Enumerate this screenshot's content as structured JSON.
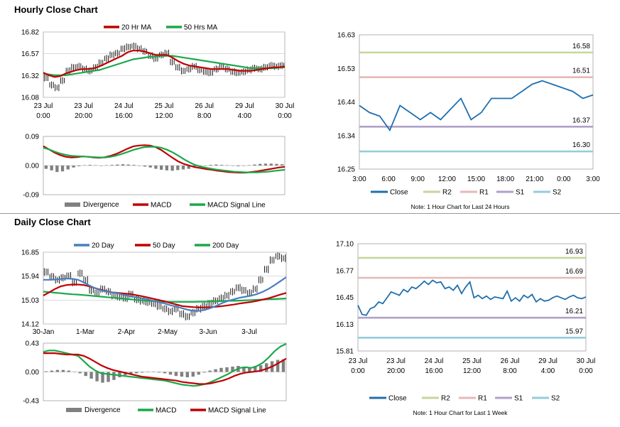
{
  "sections": {
    "hourly_title": "Hourly Close Chart",
    "daily_title": "Daily Close Chart"
  },
  "colors": {
    "ma_short": "#c00000",
    "ma_long": "#1aa84b",
    "ma_200": "#1aa84b",
    "ma_20d": "#4a7ebf",
    "close": "#1f6fae",
    "r2": "#c4d79b",
    "r1": "#e6b8b7",
    "s1": "#b1a0c7",
    "s2": "#92cddc",
    "divergence": "#808080",
    "macd_red": "#c00000",
    "macd_green": "#1aa84b"
  },
  "chart_data": [
    {
      "id": "hourly_price",
      "type": "line",
      "title": "",
      "legend": [
        "20 Hr MA",
        "50 Hrs MA"
      ],
      "yticks": [
        "16.82",
        "16.57",
        "16.32",
        "16.08"
      ],
      "ylim": [
        16.08,
        16.82
      ],
      "xticks": [
        [
          "23 Jul",
          "0:00"
        ],
        [
          "23 Jul",
          "20:00"
        ],
        [
          "24 Jul",
          "16:00"
        ],
        [
          "25 Jul",
          "12:00"
        ],
        [
          "26 Jul",
          "8:00"
        ],
        [
          "29 Jul",
          "4:00"
        ],
        [
          "30 Jul",
          "0:00"
        ]
      ],
      "price": [
        16.3,
        16.22,
        16.19,
        16.27,
        16.38,
        16.42,
        16.43,
        16.4,
        16.38,
        16.42,
        16.47,
        16.52,
        16.56,
        16.58,
        16.63,
        16.65,
        16.66,
        16.63,
        16.6,
        16.55,
        16.52,
        16.56,
        16.58,
        16.48,
        16.42,
        16.38,
        16.4,
        16.43,
        16.39,
        16.37,
        16.36,
        16.4,
        16.43,
        16.4,
        16.37,
        16.36,
        16.37,
        16.39,
        16.41,
        16.4,
        16.42,
        16.44,
        16.43,
        16.44
      ],
      "ma_short": [
        16.36,
        16.33,
        16.31,
        16.32,
        16.35,
        16.37,
        16.39,
        16.4,
        16.4,
        16.41,
        16.43,
        16.46,
        16.49,
        16.52,
        16.55,
        16.59,
        16.61,
        16.61,
        16.6,
        16.58,
        16.56,
        16.56,
        16.56,
        16.53,
        16.49,
        16.46,
        16.44,
        16.43,
        16.42,
        16.41,
        16.4,
        16.4,
        16.4,
        16.4,
        16.39,
        16.38,
        16.38,
        16.38,
        16.39,
        16.4,
        16.41,
        16.42,
        16.42,
        16.43
      ],
      "ma_long": [
        16.35,
        16.34,
        16.33,
        16.33,
        16.33,
        16.34,
        16.35,
        16.36,
        16.37,
        16.38,
        16.39,
        16.41,
        16.43,
        16.45,
        16.47,
        16.49,
        16.51,
        16.52,
        16.53,
        16.54,
        16.54,
        16.55,
        16.55,
        16.55,
        16.54,
        16.53,
        16.52,
        16.51,
        16.5,
        16.49,
        16.48,
        16.47,
        16.46,
        16.45,
        16.44,
        16.43,
        16.42,
        16.41,
        16.41,
        16.41,
        16.41,
        16.41,
        16.42,
        16.42
      ]
    },
    {
      "id": "hourly_macd",
      "type": "line",
      "legend": [
        "Divergence",
        "MACD",
        "MACD Signal Line"
      ],
      "yticks": [
        "0.09",
        "0.00",
        "-0.09"
      ],
      "ylim": [
        -0.09,
        0.09
      ],
      "divergence": [
        -0.01,
        -0.015,
        -0.02,
        -0.018,
        -0.012,
        -0.006,
        -0.002,
        0.001,
        0.002,
        0.001,
        0.0,
        0.001,
        0.002,
        0.003,
        0.004,
        0.003,
        0.002,
        0.0,
        -0.003,
        -0.006,
        -0.01,
        -0.013,
        -0.015,
        -0.016,
        -0.014,
        -0.012,
        -0.01,
        -0.006,
        -0.003,
        0.0,
        0.002,
        0.003,
        0.002,
        0.001,
        0.0,
        -0.002,
        -0.001,
        0.001,
        0.003,
        0.005,
        0.006,
        0.006,
        0.005,
        0.004
      ],
      "macd": [
        0.06,
        0.05,
        0.04,
        0.032,
        0.027,
        0.025,
        0.026,
        0.028,
        0.027,
        0.025,
        0.024,
        0.026,
        0.03,
        0.036,
        0.044,
        0.052,
        0.059,
        0.062,
        0.063,
        0.062,
        0.057,
        0.048,
        0.036,
        0.024,
        0.013,
        0.005,
        0.0,
        -0.005,
        -0.008,
        -0.011,
        -0.013,
        -0.016,
        -0.018,
        -0.02,
        -0.021,
        -0.022,
        -0.022,
        -0.02,
        -0.018,
        -0.015,
        -0.012,
        -0.009,
        -0.006,
        -0.004
      ],
      "signal": [
        0.055,
        0.05,
        0.043,
        0.037,
        0.033,
        0.03,
        0.029,
        0.028,
        0.027,
        0.026,
        0.025,
        0.025,
        0.027,
        0.031,
        0.036,
        0.042,
        0.048,
        0.053,
        0.057,
        0.058,
        0.058,
        0.055,
        0.049,
        0.041,
        0.031,
        0.02,
        0.01,
        0.002,
        -0.003,
        -0.007,
        -0.01,
        -0.013,
        -0.015,
        -0.017,
        -0.019,
        -0.02,
        -0.021,
        -0.021,
        -0.021,
        -0.02,
        -0.019,
        -0.017,
        -0.015,
        -0.013
      ]
    },
    {
      "id": "hourly_24h",
      "type": "line",
      "yticks": [
        "16.63",
        "16.53",
        "16.44",
        "16.34",
        "16.25"
      ],
      "ylim": [
        16.25,
        16.63
      ],
      "xticks": [
        "3:00",
        "6:00",
        "9:00",
        "12:00",
        "15:00",
        "18:00",
        "21:00",
        "0:00",
        "3:00"
      ],
      "close": [
        16.43,
        16.41,
        16.4,
        16.36,
        16.43,
        16.41,
        16.39,
        16.41,
        16.39,
        16.42,
        16.45,
        16.39,
        16.41,
        16.45,
        16.45,
        16.45,
        16.47,
        16.49,
        16.5,
        16.49,
        16.48,
        16.47,
        16.45,
        16.46
      ],
      "levels": [
        {
          "name": "R2",
          "value": "16.58"
        },
        {
          "name": "R1",
          "value": "16.51"
        },
        {
          "name": "S1",
          "value": "16.37"
        },
        {
          "name": "S2",
          "value": "16.30"
        }
      ],
      "legend": [
        "Close",
        "R2",
        "R1",
        "S1",
        "S2"
      ],
      "note": "Note: 1 Hour Chart for Last 24 Hours"
    },
    {
      "id": "daily_price",
      "type": "line",
      "legend": [
        "20 Day",
        "50 Day",
        "200 Day"
      ],
      "yticks": [
        "16.85",
        "15.94",
        "15.03",
        "14.12"
      ],
      "ylim": [
        14.12,
        16.85
      ],
      "xticks": [
        "30-Jan",
        "1-Mar",
        "2-Apr",
        "2-May",
        "3-Jun",
        "3-Jul"
      ],
      "price": [
        16.1,
        15.92,
        15.8,
        15.88,
        15.95,
        15.7,
        16.05,
        15.8,
        15.4,
        15.3,
        15.45,
        15.35,
        15.2,
        15.15,
        15.1,
        15.25,
        15.05,
        15.0,
        14.95,
        14.9,
        14.8,
        14.7,
        14.6,
        14.7,
        14.5,
        14.4,
        14.55,
        14.7,
        14.8,
        14.9,
        15.0,
        15.1,
        15.2,
        15.35,
        15.5,
        15.4,
        15.3,
        15.45,
        15.8,
        16.2,
        16.55,
        16.7,
        16.62
      ],
      "ma20": [
        15.8,
        15.8,
        15.81,
        15.83,
        15.85,
        15.84,
        15.8,
        15.7,
        15.58,
        15.48,
        15.4,
        15.35,
        15.32,
        15.28,
        15.22,
        15.18,
        15.14,
        15.1,
        15.06,
        15.0,
        14.95,
        14.9,
        14.83,
        14.78,
        14.72,
        14.66,
        14.62,
        14.62,
        14.66,
        14.73,
        14.82,
        14.92,
        15.0,
        15.06,
        15.12,
        15.16,
        15.2,
        15.26,
        15.35,
        15.46,
        15.6,
        15.75,
        15.9
      ],
      "ma50": [
        15.2,
        15.32,
        15.45,
        15.55,
        15.6,
        15.62,
        15.62,
        15.6,
        15.55,
        15.48,
        15.42,
        15.36,
        15.32,
        15.3,
        15.28,
        15.26,
        15.22,
        15.18,
        15.13,
        15.08,
        15.03,
        14.98,
        14.92,
        14.86,
        14.8,
        14.78,
        14.76,
        14.75,
        14.75,
        14.76,
        14.78,
        14.8,
        14.83,
        14.86,
        14.9,
        14.93,
        14.96,
        15.0,
        15.05,
        15.1,
        15.17,
        15.24,
        15.3
      ],
      "ma200": [
        15.35,
        15.33,
        15.31,
        15.29,
        15.27,
        15.25,
        15.24,
        15.22,
        15.2,
        15.18,
        15.16,
        15.14,
        15.12,
        15.1,
        15.08,
        15.06,
        15.04,
        15.02,
        15.0,
        14.99,
        14.98,
        14.97,
        14.96,
        14.96,
        14.96,
        14.96,
        14.96,
        14.97,
        14.97,
        14.98,
        14.98,
        14.99,
        15.0,
        15.0,
        15.01,
        15.02,
        15.03,
        15.04,
        15.05,
        15.06,
        15.07,
        15.08,
        15.09
      ]
    },
    {
      "id": "daily_macd",
      "type": "line",
      "legend": [
        "Divergence",
        "MACD",
        "MACD Signal Line"
      ],
      "yticks": [
        "0.43",
        "0.00",
        "-0.43"
      ],
      "ylim": [
        -0.43,
        0.43
      ],
      "divergence": [
        0.01,
        0.02,
        0.03,
        0.03,
        0.02,
        0.0,
        -0.02,
        -0.06,
        -0.1,
        -0.14,
        -0.16,
        -0.15,
        -0.12,
        -0.08,
        -0.05,
        -0.03,
        -0.02,
        -0.01,
        0.0,
        0.0,
        -0.01,
        -0.02,
        -0.04,
        -0.06,
        -0.07,
        -0.08,
        -0.07,
        -0.04,
        -0.01,
        0.02,
        0.04,
        0.06,
        0.07,
        0.08,
        0.09,
        0.08,
        0.07,
        0.08,
        0.1,
        0.13,
        0.16,
        0.18,
        0.19
      ],
      "macd": [
        0.3,
        0.32,
        0.32,
        0.3,
        0.28,
        0.26,
        0.24,
        0.16,
        0.08,
        0.02,
        -0.02,
        -0.03,
        -0.04,
        -0.05,
        -0.06,
        -0.07,
        -0.08,
        -0.09,
        -0.1,
        -0.11,
        -0.12,
        -0.13,
        -0.15,
        -0.17,
        -0.19,
        -0.2,
        -0.21,
        -0.2,
        -0.18,
        -0.15,
        -0.11,
        -0.07,
        -0.03,
        0.02,
        0.06,
        0.07,
        0.06,
        0.09,
        0.14,
        0.22,
        0.31,
        0.38,
        0.42
      ],
      "signal": [
        0.28,
        0.28,
        0.28,
        0.27,
        0.26,
        0.26,
        0.26,
        0.24,
        0.2,
        0.15,
        0.1,
        0.06,
        0.03,
        0.01,
        -0.01,
        -0.03,
        -0.05,
        -0.07,
        -0.08,
        -0.09,
        -0.1,
        -0.11,
        -0.12,
        -0.13,
        -0.15,
        -0.16,
        -0.17,
        -0.18,
        -0.18,
        -0.17,
        -0.15,
        -0.13,
        -0.1,
        -0.06,
        -0.03,
        -0.01,
        0.0,
        0.01,
        0.03,
        0.06,
        0.1,
        0.15,
        0.2
      ]
    },
    {
      "id": "daily_week",
      "type": "line",
      "yticks": [
        "17.10",
        "16.77",
        "16.45",
        "16.13",
        "15.81"
      ],
      "ylim": [
        15.81,
        17.1
      ],
      "xticks": [
        [
          "23 Jul",
          "0:00"
        ],
        [
          "23 Jul",
          "20:00"
        ],
        [
          "24 Jul",
          "16:00"
        ],
        [
          "25 Jul",
          "12:00"
        ],
        [
          "26 Jul",
          "8:00"
        ],
        [
          "29 Jul",
          "4:00"
        ],
        [
          "30 Jul",
          "0:00"
        ]
      ],
      "close": [
        16.36,
        16.25,
        16.24,
        16.32,
        16.34,
        16.4,
        16.38,
        16.45,
        16.52,
        16.5,
        16.48,
        16.55,
        16.52,
        16.58,
        16.56,
        16.6,
        16.65,
        16.61,
        16.66,
        16.63,
        16.64,
        16.56,
        16.58,
        16.54,
        16.6,
        16.5,
        16.58,
        16.64,
        16.45,
        16.48,
        16.44,
        16.47,
        16.43,
        16.46,
        16.45,
        16.44,
        16.53,
        16.41,
        16.45,
        16.41,
        16.48,
        16.45,
        16.49,
        16.4,
        16.44,
        16.41,
        16.42,
        16.45,
        16.47,
        16.45,
        16.43,
        16.46,
        16.48,
        16.45,
        16.44,
        16.46
      ],
      "levels": [
        {
          "name": "R2",
          "value": "16.93"
        },
        {
          "name": "R1",
          "value": "16.69"
        },
        {
          "name": "S1",
          "value": "16.21"
        },
        {
          "name": "S2",
          "value": "15.97"
        }
      ],
      "legend": [
        "Close",
        "R2",
        "R1",
        "S1",
        "S2"
      ],
      "note": "Note: 1 Hour Chart for Last 1 Week"
    }
  ]
}
